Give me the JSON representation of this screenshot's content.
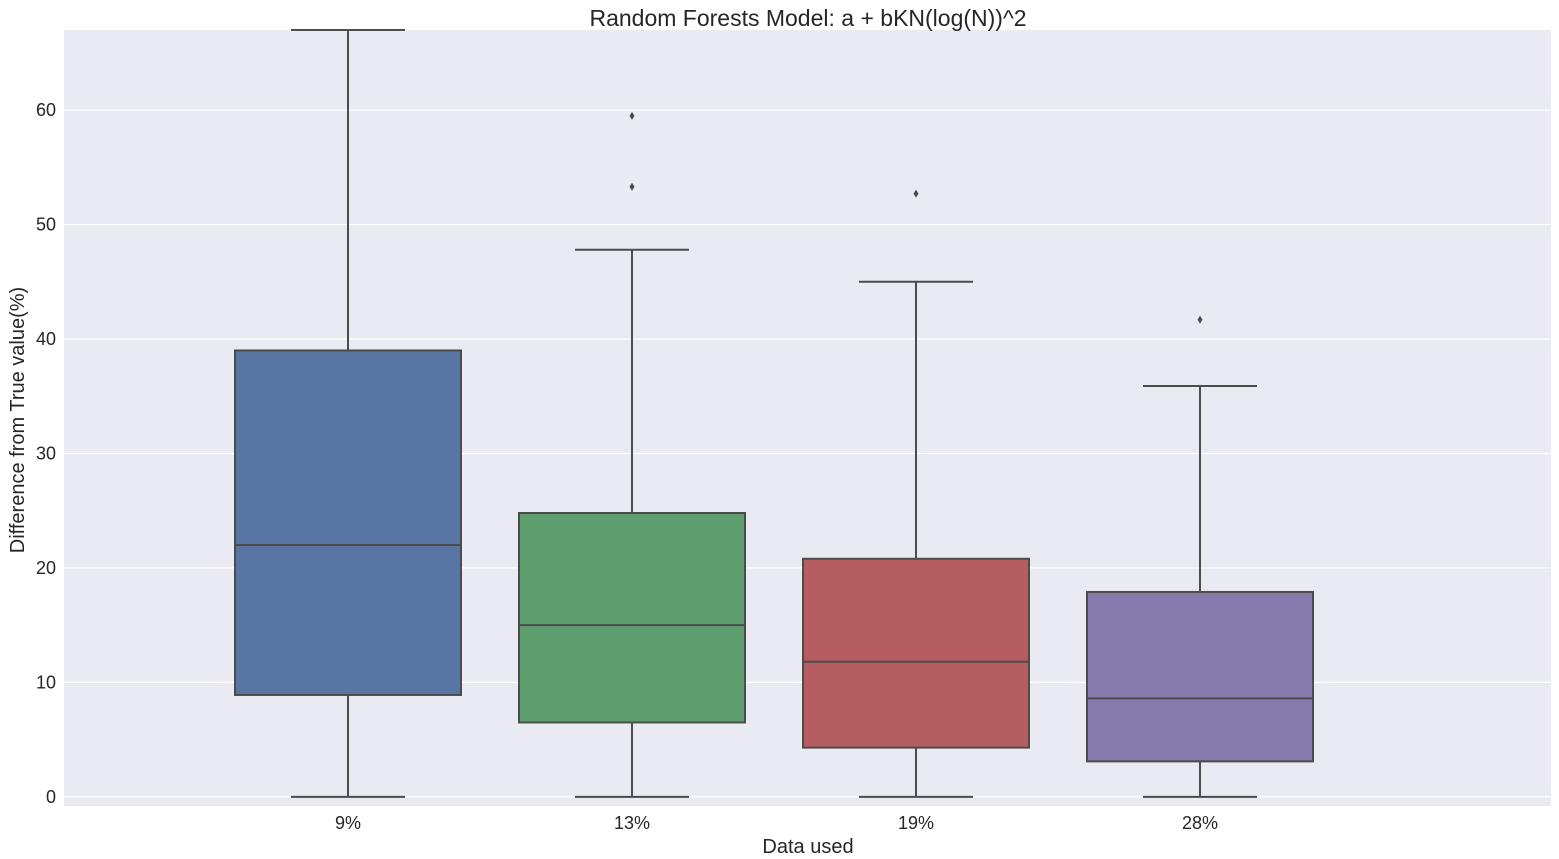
{
  "chart_data": {
    "type": "box",
    "title": "Random Forests Model: a + bKN(log(N))^2",
    "xlabel": "Data used",
    "ylabel": "Difference from True value(%)",
    "ylim": [
      -0.8,
      67
    ],
    "yticks": [
      "0",
      "10",
      "20",
      "30",
      "40",
      "50",
      "60"
    ],
    "grid": true,
    "background_color": "#EAEAF2",
    "line_color": "#4C4C4C",
    "categories": [
      "9%",
      "13%",
      "19%",
      "28%"
    ],
    "boxes": [
      {
        "category": "9%",
        "color": "#5875A4",
        "min": 0,
        "q1": 8.9,
        "median": 22.0,
        "q3": 39.0,
        "max": 67.0,
        "outliers": []
      },
      {
        "category": "13%",
        "color": "#5F9E6E",
        "min": 0,
        "q1": 6.5,
        "median": 15.0,
        "q3": 24.8,
        "max": 47.8,
        "outliers": [
          53.3,
          59.5
        ]
      },
      {
        "category": "19%",
        "color": "#B55D60",
        "min": 0,
        "q1": 4.3,
        "median": 11.8,
        "q3": 20.8,
        "max": 45.0,
        "outliers": [
          52.7
        ]
      },
      {
        "category": "28%",
        "color": "#857AAB",
        "min": 0,
        "q1": 3.1,
        "median": 8.6,
        "q3": 17.9,
        "max": 35.9,
        "outliers": [
          41.7
        ]
      }
    ]
  }
}
